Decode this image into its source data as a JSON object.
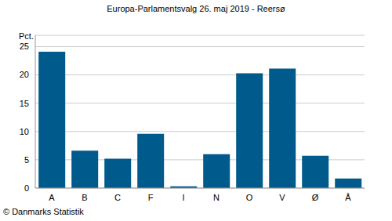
{
  "chart_data": {
    "type": "bar",
    "title": "Europa-Parlamentsvalg 26. maj 2019 - Reersø",
    "y_label": "Pct.",
    "annotation": "© Danmarks Statistik",
    "categories": [
      "A",
      "B",
      "C",
      "F",
      "I",
      "N",
      "O",
      "V",
      "Ø",
      "Å"
    ],
    "values": [
      24.1,
      6.6,
      5.2,
      9.6,
      0.3,
      6.0,
      20.3,
      21.1,
      5.7,
      1.7
    ],
    "color": "#005a8c",
    "ylim": [
      0,
      27
    ],
    "yticks": [
      0,
      5,
      10,
      15,
      20,
      25
    ],
    "grid": true
  }
}
